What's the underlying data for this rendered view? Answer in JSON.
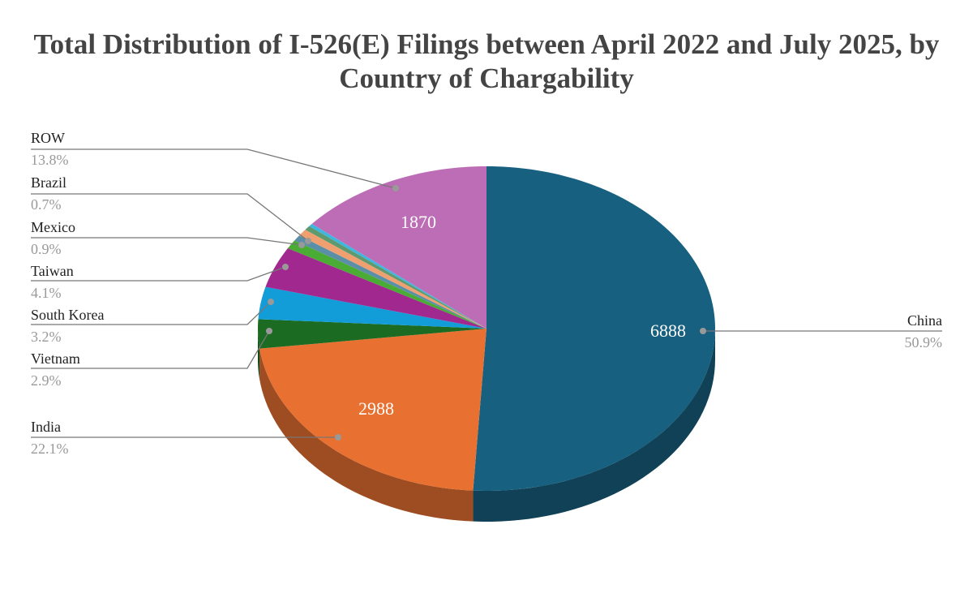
{
  "chart_data": {
    "type": "pie",
    "style": "3d",
    "title": "Total Distribution of I-526(E) Filings between April 2022 and July 2025, by Country of Chargability",
    "slices": [
      {
        "name": "China",
        "value": 6888,
        "percent": "50.9%",
        "value_label": "6888",
        "color": "#17607f"
      },
      {
        "name": "India",
        "value": 2988,
        "percent": "22.1%",
        "value_label": "2988",
        "color": "#e87030"
      },
      {
        "name": "Vietnam",
        "value": 392,
        "percent": "2.9%",
        "color": "#1c6b22"
      },
      {
        "name": "South Korea",
        "value": 433,
        "percent": "3.2%",
        "color": "#129dd8"
      },
      {
        "name": "Taiwan",
        "value": 555,
        "percent": "4.1%",
        "color": "#a0288f"
      },
      {
        "name": "Mexico",
        "value": 122,
        "percent": "0.9%",
        "color": "#4aab35"
      },
      {
        "name": "",
        "value": 80,
        "color": "#5b8fa8"
      },
      {
        "name": "Brazil",
        "value": 95,
        "percent": "0.7%",
        "color": "#f0a070"
      },
      {
        "name": "",
        "value": 60,
        "color": "#5e9a6e"
      },
      {
        "name": "",
        "value": 40,
        "color": "#3fb6e0"
      },
      {
        "name": "ROW",
        "value": 1870,
        "percent": "13.8%",
        "value_label": "1870",
        "color": "#bc6db5"
      }
    ],
    "legend": "none (leader-line labels)"
  }
}
